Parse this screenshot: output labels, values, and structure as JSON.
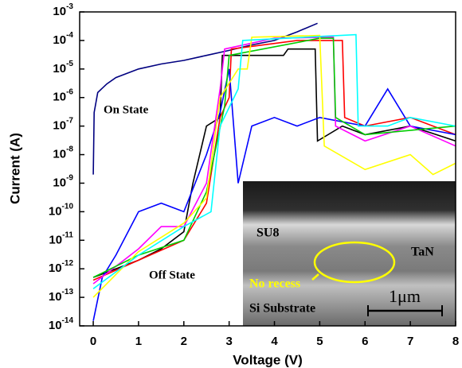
{
  "chart_data": {
    "type": "line",
    "log_y": true,
    "x_label": "Voltage (V)",
    "y_label": "Current (A)",
    "xlim": [
      -0.3,
      8
    ],
    "xticks": [
      0,
      1,
      2,
      3,
      4,
      5,
      6,
      7,
      8
    ],
    "ylim": [
      1e-14,
      0.001
    ],
    "yticks": [
      {
        "value": 1e-14,
        "label": "10^-14"
      },
      {
        "value": 1e-13,
        "label": "10^-13"
      },
      {
        "value": 1e-12,
        "label": "10^-12"
      },
      {
        "value": 1e-11,
        "label": "10^-11"
      },
      {
        "value": 1e-10,
        "label": "10^-10"
      },
      {
        "value": 1e-09,
        "label": "10^-9"
      },
      {
        "value": 1e-08,
        "label": "10^-8"
      },
      {
        "value": 1e-07,
        "label": "10^-7"
      },
      {
        "value": 1e-06,
        "label": "10^-6"
      },
      {
        "value": 1e-05,
        "label": "10^-5"
      },
      {
        "value": 0.0001,
        "label": "10^-4"
      },
      {
        "value": 0.001,
        "label": "10^-3"
      }
    ],
    "series": [
      {
        "color": "#000080",
        "x": [
          0,
          0.02,
          0.1,
          0.3,
          0.5,
          1,
          1.5,
          2,
          2.5,
          3,
          3.5,
          4,
          4.5,
          4.95
        ],
        "values": [
          2e-09,
          3e-07,
          1.5e-06,
          3e-06,
          5e-06,
          1e-05,
          1.5e-05,
          2e-05,
          3e-05,
          4.5e-05,
          7e-05,
          0.0001,
          0.0002,
          0.0004
        ]
      },
      {
        "color": "#000000",
        "x": [
          0,
          0.5,
          1,
          1.5,
          2,
          2.2,
          2.5,
          2.8,
          2.85,
          4,
          4.2,
          4.3,
          4.9,
          4.95,
          5.5,
          6,
          7,
          8
        ],
        "values": [
          5e-13,
          1e-12,
          2e-12,
          5e-12,
          2e-11,
          1e-09,
          1e-07,
          2e-07,
          3e-05,
          3e-05,
          3e-05,
          5e-05,
          5e-05,
          3e-08,
          1e-07,
          5e-08,
          1e-07,
          3e-08
        ]
      },
      {
        "color": "#ff0000",
        "x": [
          0,
          1,
          2,
          2.5,
          2.8,
          3,
          3.05,
          4.5,
          5.5,
          5.55,
          6,
          7,
          8
        ],
        "values": [
          4e-13,
          2e-12,
          1e-11,
          2e-10,
          2e-07,
          1e-06,
          5e-05,
          0.0001,
          0.0001,
          2e-07,
          1e-07,
          2e-07,
          5e-08
        ]
      },
      {
        "color": "#0000ff",
        "x": [
          0,
          0.2,
          0.5,
          1,
          1.5,
          2,
          2.5,
          2.8,
          3,
          3.2,
          3.5,
          4,
          4.5,
          5,
          6,
          6.5,
          7,
          8
        ],
        "values": [
          1.5e-14,
          5e-13,
          3e-12,
          1e-10,
          2e-10,
          1e-10,
          1e-08,
          3e-07,
          1e-05,
          1e-09,
          1e-07,
          2e-07,
          1e-07,
          2e-07,
          1e-07,
          2e-06,
          1e-07,
          5e-08
        ]
      },
      {
        "color": "#ff00ff",
        "x": [
          0,
          1,
          1.5,
          2,
          2.5,
          2.8,
          2.9,
          4,
          5.3,
          5.35,
          6,
          7,
          8
        ],
        "values": [
          3e-13,
          5e-12,
          3e-11,
          3e-11,
          1e-09,
          2e-06,
          5e-05,
          0.00012,
          0.00013,
          1e-07,
          3e-08,
          1e-07,
          2e-08
        ]
      },
      {
        "color": "#00cc00",
        "x": [
          0,
          1,
          2,
          2.5,
          2.9,
          3,
          5,
          5.3,
          5.35,
          6,
          8
        ],
        "values": [
          5e-13,
          3e-12,
          1e-11,
          5e-10,
          5e-07,
          3e-05,
          0.00012,
          0.00012,
          2e-07,
          5e-08,
          1e-07
        ]
      },
      {
        "color": "#ffff00",
        "x": [
          0,
          1,
          2,
          2.5,
          2.8,
          3.2,
          3.4,
          3.5,
          5,
          5.1,
          6,
          7,
          7.5,
          8
        ],
        "values": [
          1e-13,
          4e-12,
          4e-11,
          3e-10,
          1e-06,
          1e-05,
          1e-05,
          0.00013,
          0.00015,
          2e-08,
          3e-09,
          1e-08,
          2e-09,
          5e-09
        ]
      },
      {
        "color": "#00ffff",
        "x": [
          0,
          1,
          2,
          2.6,
          2.8,
          3.2,
          3.3,
          5.8,
          5.85,
          6.5,
          7,
          8
        ],
        "values": [
          2e-13,
          3e-12,
          3e-11,
          1e-10,
          1e-07,
          2e-06,
          0.0001,
          0.00016,
          1e-07,
          1e-07,
          2e-07,
          1e-07
        ]
      }
    ],
    "annotations": {
      "on_state": "On State",
      "off_state": "Off State",
      "su8": "SU8",
      "tan": "TaN",
      "no_recess": "No recess",
      "substrate": "Si Substrate",
      "scale": "1μm"
    }
  }
}
